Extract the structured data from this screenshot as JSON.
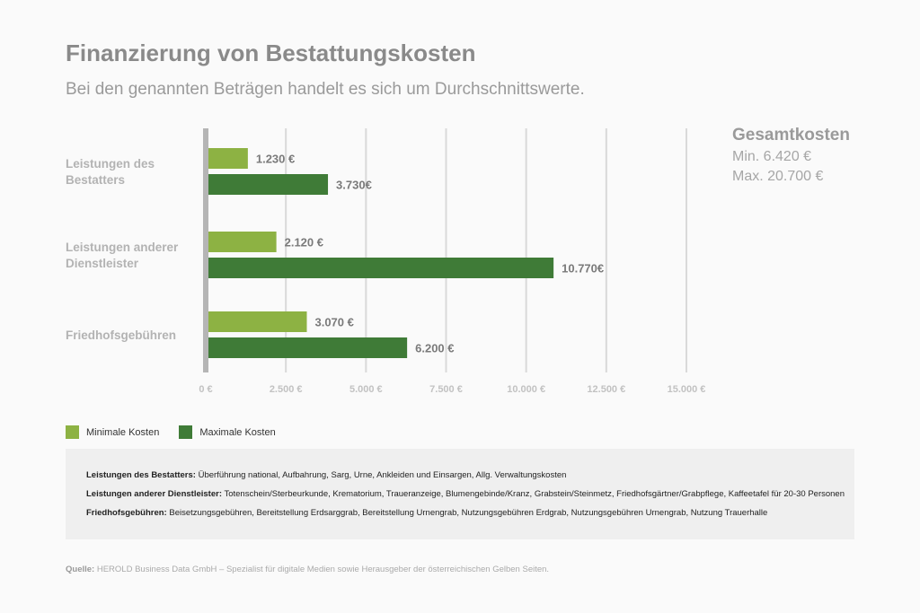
{
  "title": "Finanzierung von Bestattungskosten",
  "subtitle": "Bei den genannten Beträgen handelt es sich um Durchschnittswerte.",
  "totals": {
    "heading": "Gesamtkosten",
    "min": "Min. 6.420 €",
    "max": "Max. 20.700 €"
  },
  "colors": {
    "min": "#8db243",
    "max": "#3f7b37",
    "grid": "#d9d9d9",
    "axis": "#b5b5b5"
  },
  "chart_data": {
    "type": "bar",
    "orientation": "horizontal",
    "categories": [
      [
        "Leistungen des",
        "Bestatters"
      ],
      [
        "Leistungen anderer",
        "Dienstleister"
      ],
      [
        "Friedhofsgebühren"
      ]
    ],
    "series": [
      {
        "name": "Minimale Kosten",
        "values": [
          1230,
          2120,
          3070
        ],
        "labels": [
          "1.230 €",
          "2.120 €",
          "3.070 €"
        ]
      },
      {
        "name": "Maximale Kosten",
        "values": [
          3730,
          10770,
          6200
        ],
        "labels": [
          "3.730€",
          "10.770€",
          "6.200 €"
        ]
      }
    ],
    "xlim": [
      0,
      15000
    ],
    "xticks": [
      0,
      2500,
      5000,
      7500,
      10000,
      12500,
      15000
    ],
    "xtick_labels": [
      "0 €",
      "2.500 €",
      "5.000 €",
      "7.500 €",
      "10.000 €",
      "12.500 €",
      "15.000 €"
    ],
    "grid": true,
    "legend": "bottom-left"
  },
  "legend": {
    "min_label": "Minimale Kosten",
    "max_label": "Maximale Kosten"
  },
  "notes": [
    {
      "key": "Leistungen des Bestatters:",
      "text": " Überführung national, Aufbahrung, Sarg, Urne, Ankleiden und Einsargen, Allg. Verwaltungskosten"
    },
    {
      "key": "Leistungen anderer Dienstleister:",
      "text": " Totenschein/Sterbeurkunde, Krematorium, Traueranzeige, Blumengebinde/Kranz, Grabstein/Steinmetz, Friedhofsgärtner/Grabpflege, Kaffeetafel für 20-30 Personen"
    },
    {
      "key": "Friedhofsgebühren:",
      "text": " Beisetzungsgebühren, Bereitstellung Erdsarggrab, Bereitstellung Urnengrab, Nutzungsgebühren Erdgrab, Nutzungsgebühren Urnengrab, Nutzung Trauerhalle"
    }
  ],
  "source": {
    "key": "Quelle:",
    "text": " HEROLD Business Data GmbH – Spezialist für digitale Medien sowie Herausgeber der österreichischen Gelben Seiten."
  }
}
